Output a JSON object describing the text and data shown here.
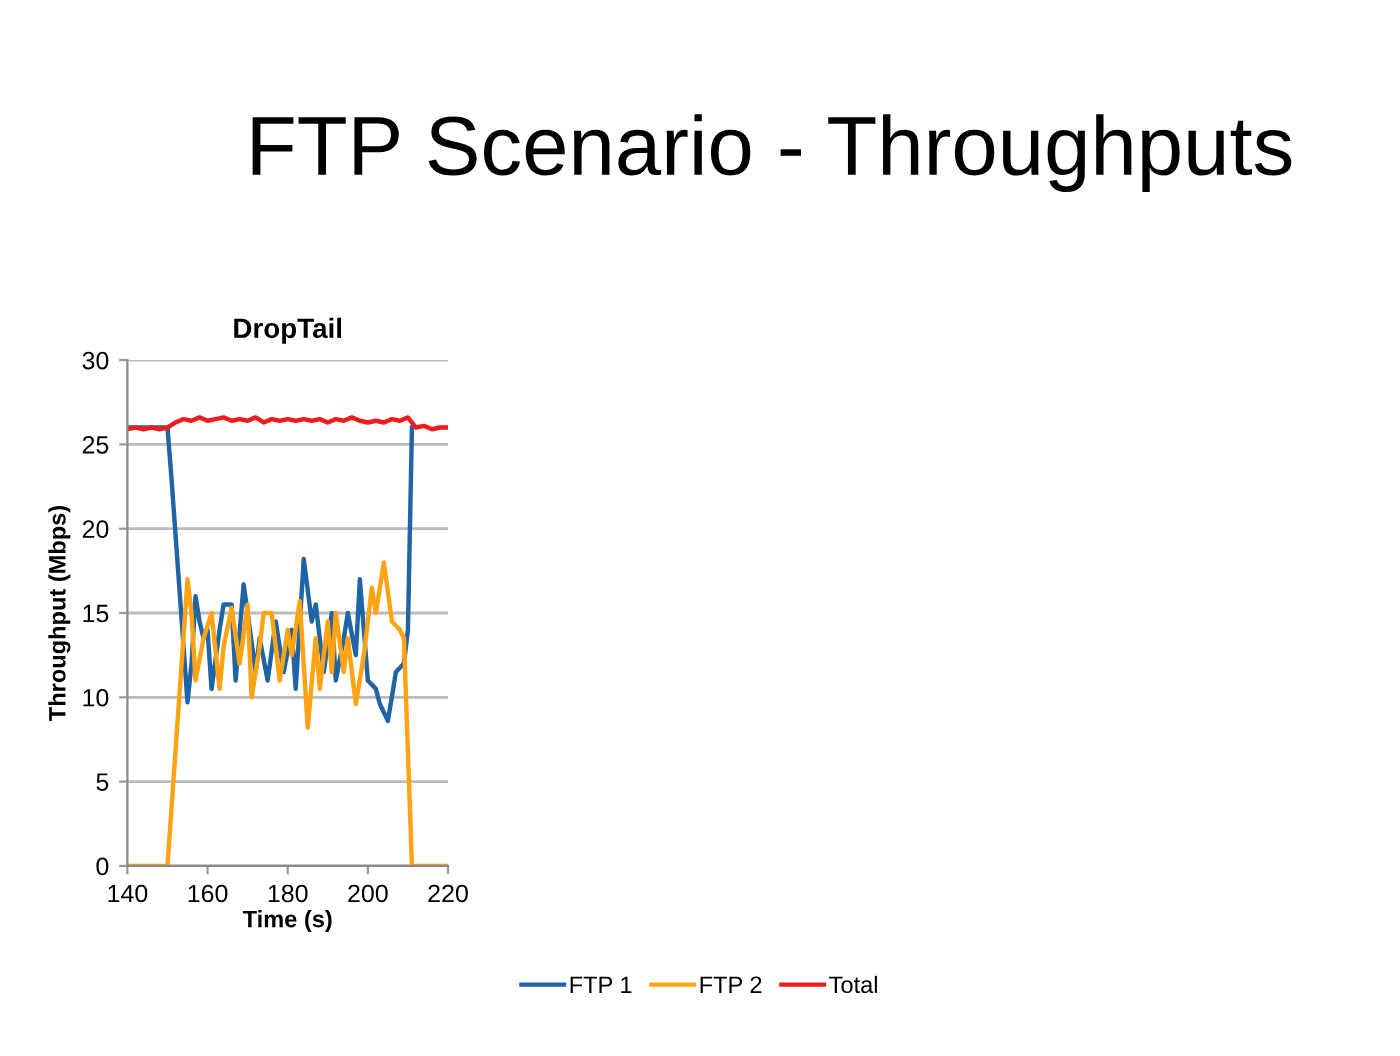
{
  "chart_data": {
    "type": "line",
    "title": "DropTail",
    "subtitle": "FTP Scenario - Throughputs",
    "xlabel": "Time (s)",
    "ylabel": "Throughput (Mbps)",
    "xlim": [
      140,
      220
    ],
    "xticks": [
      140,
      160,
      180,
      200,
      220
    ],
    "ylim": [
      0,
      30
    ],
    "yticks": [
      0,
      5,
      10,
      15,
      20,
      25,
      30
    ],
    "grid": "y",
    "legend": "bottom",
    "marker": "none",
    "line_style": "solid",
    "series": [
      {
        "name": "FTP 1",
        "color": "#1f65a6",
        "x": [
          140,
          150,
          151,
          155,
          156,
          157,
          158,
          159,
          160,
          161,
          163,
          164,
          166,
          167,
          169,
          170,
          172,
          173,
          175,
          177,
          179,
          181,
          182,
          184,
          186,
          187,
          189,
          191,
          192,
          194,
          195,
          197,
          198,
          199,
          200,
          202,
          203,
          205,
          207,
          209,
          210,
          211
        ],
        "values": [
          26,
          26,
          23,
          9.7,
          12,
          16,
          14.5,
          13.5,
          14,
          10.5,
          14,
          15.5,
          15.5,
          11,
          16.7,
          15,
          11.5,
          13.5,
          11,
          14.5,
          11.5,
          14,
          10.5,
          18.2,
          14.5,
          15.5,
          11.5,
          15,
          11,
          13.5,
          15,
          12.5,
          17,
          14,
          11,
          10.5,
          9.6,
          8.6,
          11.5,
          12,
          14,
          26
        ]
      },
      {
        "name": "FTP 2",
        "color": "#ffa313",
        "x": [
          140,
          150,
          155,
          156,
          157,
          159,
          161,
          163,
          164,
          166,
          168,
          170,
          171,
          173,
          174,
          176,
          178,
          180,
          181,
          183,
          185,
          187,
          188,
          190,
          191,
          192,
          194,
          195,
          197,
          199,
          201,
          202,
          204,
          206,
          208,
          209,
          211,
          220
        ],
        "values": [
          0,
          0,
          17,
          15,
          11,
          13.5,
          15,
          10.5,
          13,
          15.3,
          12,
          15.5,
          10,
          13,
          15,
          15,
          11,
          14,
          12.5,
          15.7,
          8.2,
          13.5,
          10.5,
          14.5,
          11.5,
          15,
          11.5,
          13.5,
          9.6,
          12.5,
          16.5,
          15,
          18,
          14.5,
          14,
          13.5,
          0,
          0
        ]
      },
      {
        "name": "Total",
        "color": "#ee1c1c",
        "x": [
          140,
          142,
          144,
          146,
          148,
          150,
          152,
          154,
          156,
          158,
          160,
          162,
          164,
          166,
          168,
          170,
          172,
          174,
          176,
          178,
          180,
          182,
          184,
          186,
          188,
          190,
          192,
          194,
          196,
          198,
          200,
          202,
          204,
          206,
          208,
          210,
          212,
          214,
          216,
          218,
          220
        ],
        "values": [
          25.9,
          26,
          25.9,
          26,
          25.9,
          26,
          26.3,
          26.5,
          26.4,
          26.6,
          26.4,
          26.5,
          26.6,
          26.4,
          26.5,
          26.4,
          26.6,
          26.3,
          26.5,
          26.4,
          26.5,
          26.4,
          26.5,
          26.4,
          26.5,
          26.3,
          26.5,
          26.4,
          26.6,
          26.4,
          26.3,
          26.4,
          26.3,
          26.5,
          26.4,
          26.6,
          26,
          26.1,
          25.9,
          26,
          26
        ]
      }
    ]
  }
}
